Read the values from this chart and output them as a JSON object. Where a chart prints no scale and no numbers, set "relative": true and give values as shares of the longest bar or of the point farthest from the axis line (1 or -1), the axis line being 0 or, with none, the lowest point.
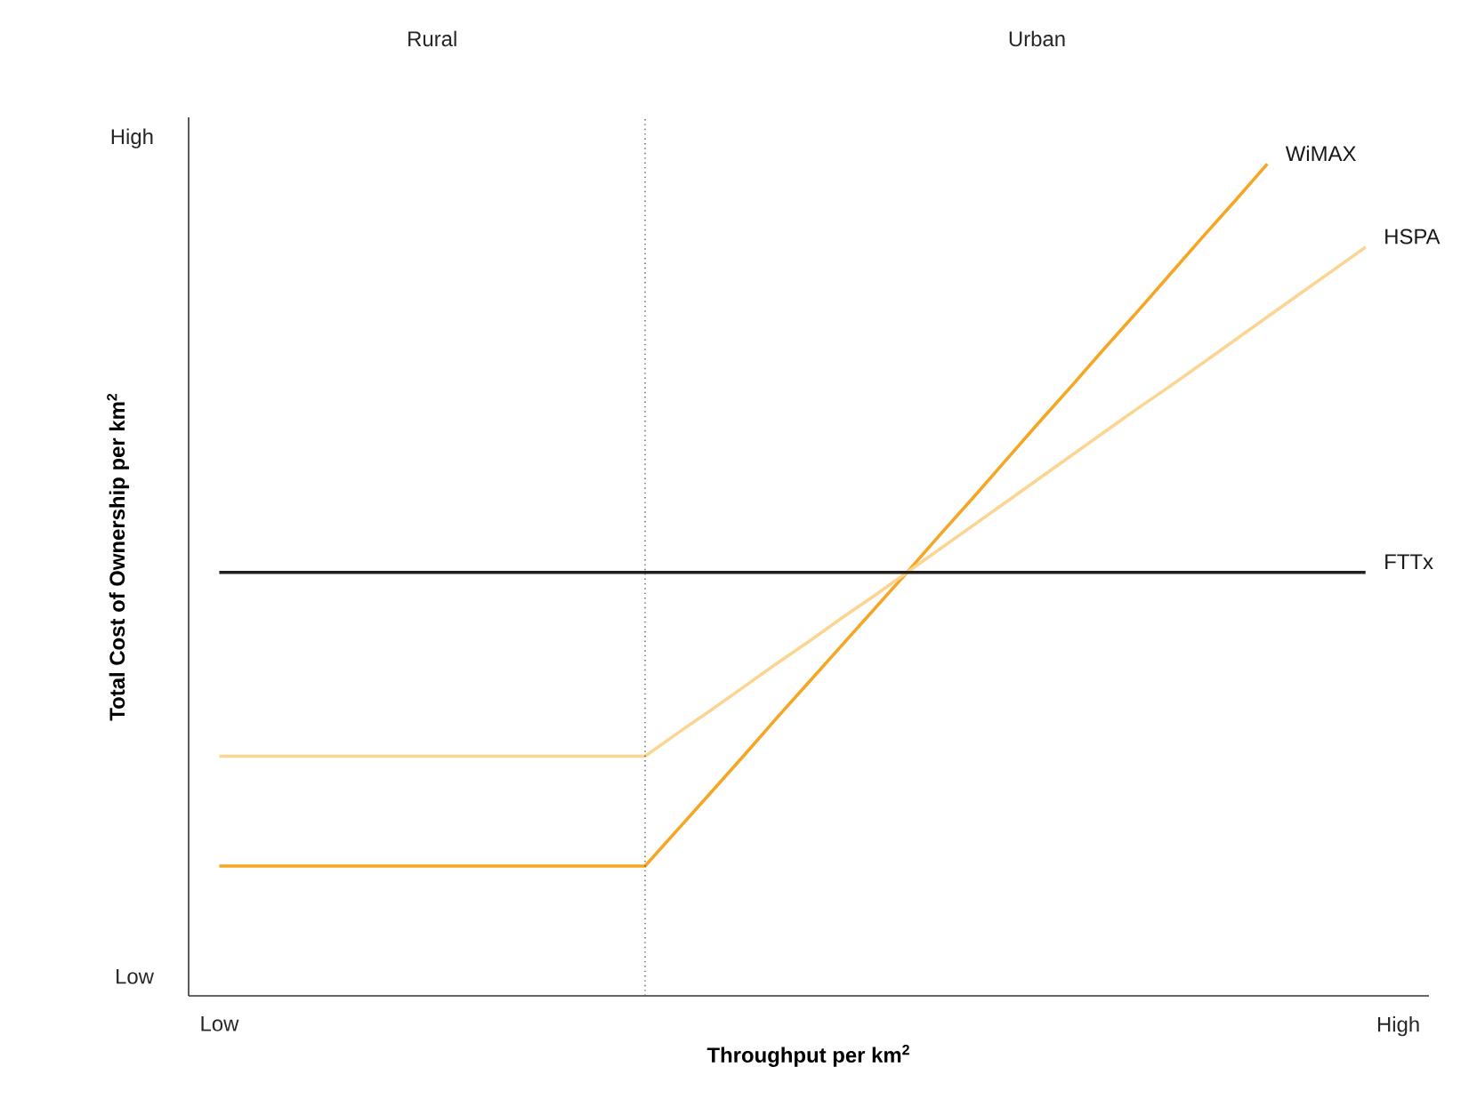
{
  "chart_data": {
    "type": "line",
    "relative": true,
    "xlabel": "Throughput per km$^{2}$",
    "ylabel": "Total Cost of Ownership per km$^{2}$",
    "annotations": [
      "Rural",
      "Urban",
      "Low",
      "High"
    ],
    "categories": [
      "Low",
      null,
      null,
      null,
      null,
      null,
      null,
      null,
      null,
      null,
      null,
      null,
      null,
      null,
      null,
      null,
      null,
      null,
      null,
      null,
      null,
      null,
      null,
      null,
      null,
      null,
      null,
      null,
      null,
      null,
      null,
      null,
      null,
      null,
      null,
      null,
      "High"
    ],
    "series": [
      {
        "name": "WiMAX",
        "color": "#f5a623",
        "values": [
          0.156,
          0.156,
          0.156,
          0.156,
          0.156,
          0.156,
          0.156,
          0.156,
          0.156,
          0.156,
          0.156,
          0.156,
          0.156,
          0.156,
          0.2,
          0.244,
          0.288,
          0.333,
          0.377,
          0.421,
          0.465,
          0.509,
          0.554,
          0.598,
          0.643,
          0.688,
          0.732,
          0.777,
          0.821,
          0.866,
          0.911,
          0.955,
          1,
          null,
          null,
          null,
          null
        ]
      },
      {
        "name": "HSPA",
        "color": "#fbd591",
        "values": [
          0.288,
          0.288,
          0.288,
          0.288,
          0.288,
          0.288,
          0.288,
          0.288,
          0.288,
          0.288,
          0.288,
          0.288,
          0.288,
          0.288,
          0.316,
          0.343,
          0.371,
          0.399,
          0.426,
          0.454,
          0.481,
          0.509,
          0.537,
          0.565,
          0.593,
          0.621,
          0.649,
          0.677,
          0.705,
          0.732,
          0.76,
          0.788,
          0.816,
          0.844,
          0.872,
          0.9,
          null
        ]
      },
      {
        "name": "FTTx",
        "color": "#231f20",
        "values": [
          0.509,
          0.509,
          0.509,
          0.509,
          0.509,
          0.509,
          0.509,
          0.509,
          0.509,
          0.509,
          0.509,
          0.509,
          0.509,
          0.509,
          0.509,
          0.509,
          0.509,
          0.509,
          0.509,
          0.509,
          0.509,
          0.509,
          0.509,
          0.509,
          0.509,
          0.509,
          0.509,
          0.509,
          0.509,
          0.509,
          0.509,
          0.509,
          0.509,
          0.509,
          0.509,
          0.509,
          null
        ]
      }
    ],
    "legend": false,
    "marker": "none",
    "line_style": "solid"
  }
}
